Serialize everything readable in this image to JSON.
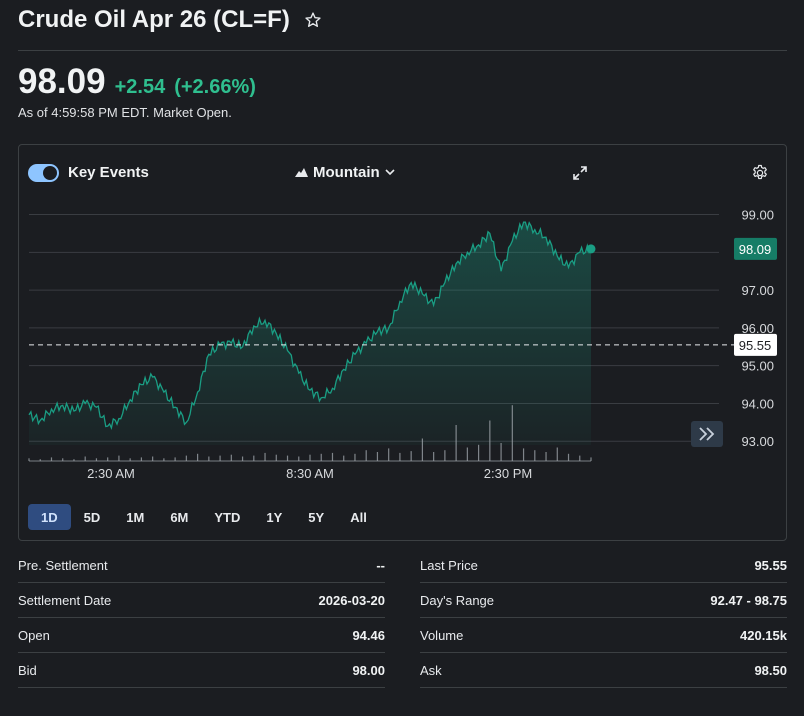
{
  "header": {
    "title": "Crude Oil Apr 26 (CL=F)",
    "price": "98.09",
    "change": "+2.54",
    "change_pct": "(+2.66%)",
    "as_of": "As of 4:59:58 PM EDT. Market Open."
  },
  "toolbar": {
    "key_events_label": "Key Events",
    "chart_type_label": "Mountain"
  },
  "chart_data": {
    "type": "area",
    "title": "",
    "x_ticks": [
      "2:30 AM",
      "8:30 AM",
      "2:30 PM"
    ],
    "y_ticks": [
      "99.00",
      "98.00",
      "97.00",
      "96.00",
      "95.00",
      "94.00",
      "93.00"
    ],
    "ylim": [
      92.9,
      99.2
    ],
    "current_price_label": "98.09",
    "previous_close_label": "95.55",
    "previous_close": 95.55,
    "current_price": 98.09,
    "series": [
      {
        "name": "price",
        "values": [
          93.7,
          93.55,
          93.85,
          93.95,
          93.8,
          94.0,
          93.9,
          93.4,
          93.6,
          94.1,
          94.5,
          94.7,
          94.3,
          93.9,
          93.5,
          94.3,
          95.3,
          95.55,
          95.6,
          95.5,
          96.05,
          96.2,
          95.85,
          95.4,
          94.8,
          94.35,
          94.15,
          94.4,
          94.9,
          95.3,
          95.6,
          95.9,
          96.0,
          96.7,
          97.2,
          96.9,
          96.6,
          97.2,
          97.7,
          98.0,
          98.2,
          98.5,
          97.5,
          98.3,
          98.8,
          98.6,
          98.4,
          97.9,
          97.6,
          98.0,
          98.09
        ]
      }
    ],
    "volume": [
      3,
      2,
      4,
      3,
      2,
      5,
      3,
      4,
      6,
      3,
      4,
      5,
      3,
      4,
      6,
      8,
      5,
      6,
      7,
      5,
      6,
      9,
      7,
      6,
      5,
      7,
      8,
      9,
      6,
      8,
      12,
      10,
      14,
      9,
      11,
      25,
      10,
      12,
      40,
      15,
      18,
      45,
      20,
      62,
      14,
      12,
      10,
      15,
      8,
      6,
      4
    ]
  },
  "ranges": [
    "1D",
    "5D",
    "1M",
    "6M",
    "YTD",
    "1Y",
    "5Y",
    "All"
  ],
  "active_range": "1D",
  "stats": {
    "left": [
      {
        "label": "Pre. Settlement",
        "value": "--"
      },
      {
        "label": "Settlement Date",
        "value": "2026-03-20"
      },
      {
        "label": "Open",
        "value": "94.46"
      },
      {
        "label": "Bid",
        "value": "98.00"
      }
    ],
    "right": [
      {
        "label": "Last Price",
        "value": "95.55"
      },
      {
        "label": "Day's Range",
        "value": "92.47 - 98.75"
      },
      {
        "label": "Volume",
        "value": "420.15k"
      },
      {
        "label": "Ask",
        "value": "98.50"
      }
    ]
  },
  "colors": {
    "accent_green": "#2fbf8f",
    "line_green": "#1a9e84",
    "badge_green": "#167c66",
    "active_range_bg": "#2f4c80"
  }
}
